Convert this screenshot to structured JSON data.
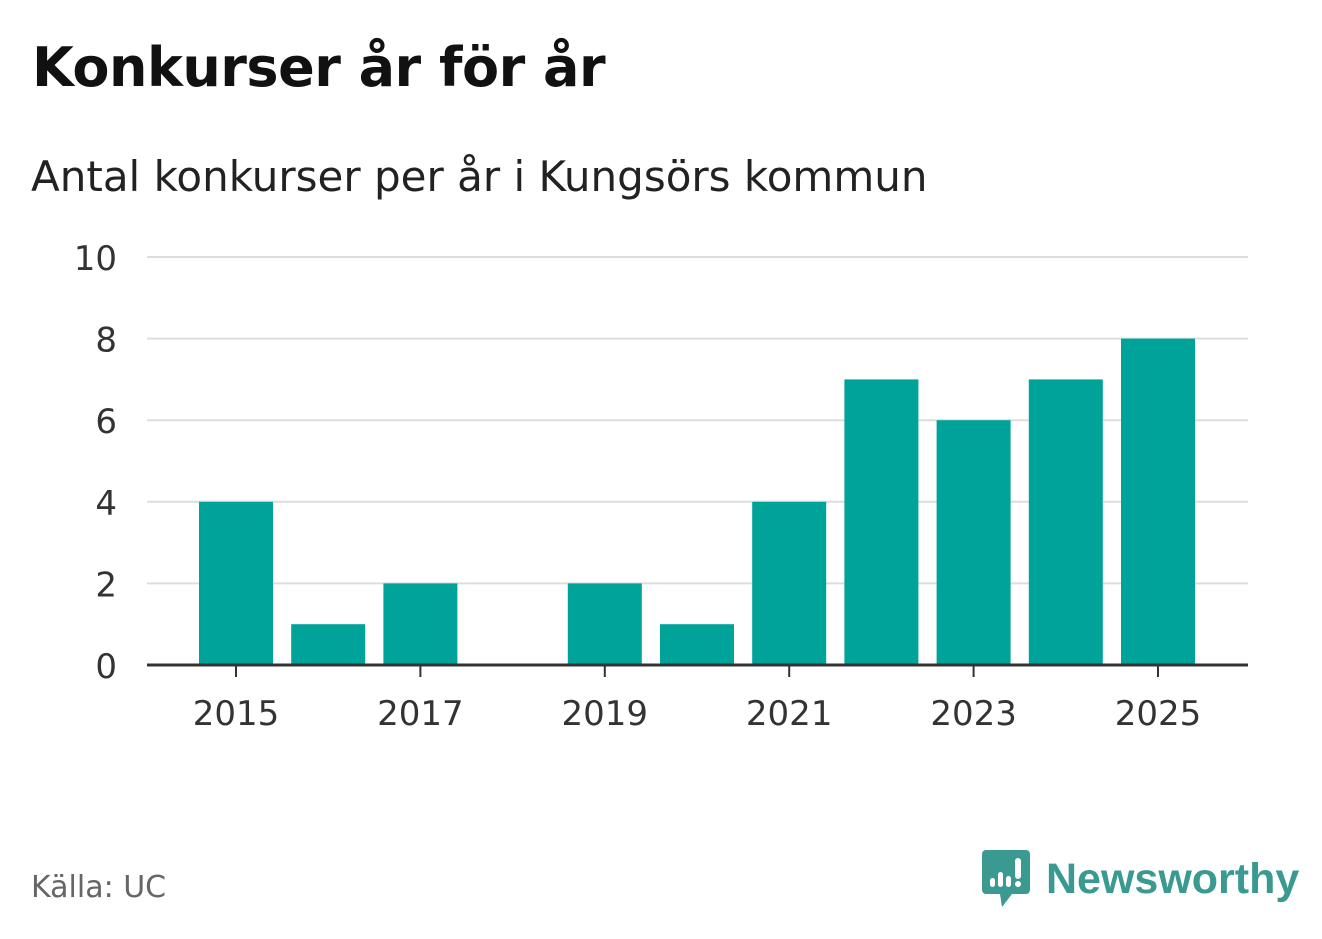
{
  "header": {
    "title": "Konkurser år för år",
    "subtitle": "Antal konkurser per år i Kungsörs kommun"
  },
  "footer": {
    "source": "Källa: UC",
    "brand": "Newsworthy"
  },
  "colors": {
    "bar": "#00a39a",
    "grid": "#dddddd",
    "axis": "#333333",
    "brand": "#3a9a92"
  },
  "chart_data": {
    "type": "bar",
    "title": "Konkurser år för år",
    "subtitle": "Antal konkurser per år i Kungsörs kommun",
    "categories": [
      "2015",
      "2016",
      "2017",
      "2018",
      "2019",
      "2020",
      "2021",
      "2022",
      "2023",
      "2024",
      "2025"
    ],
    "values": [
      4,
      1,
      2,
      0,
      2,
      1,
      4,
      7,
      6,
      7,
      8
    ],
    "xticks": [
      "2015",
      "2017",
      "2019",
      "2021",
      "2023",
      "2025"
    ],
    "yticks": [
      0,
      2,
      4,
      6,
      8,
      10
    ],
    "ylim": [
      0,
      10
    ],
    "xlabel": "",
    "ylabel": "",
    "grid": true
  }
}
